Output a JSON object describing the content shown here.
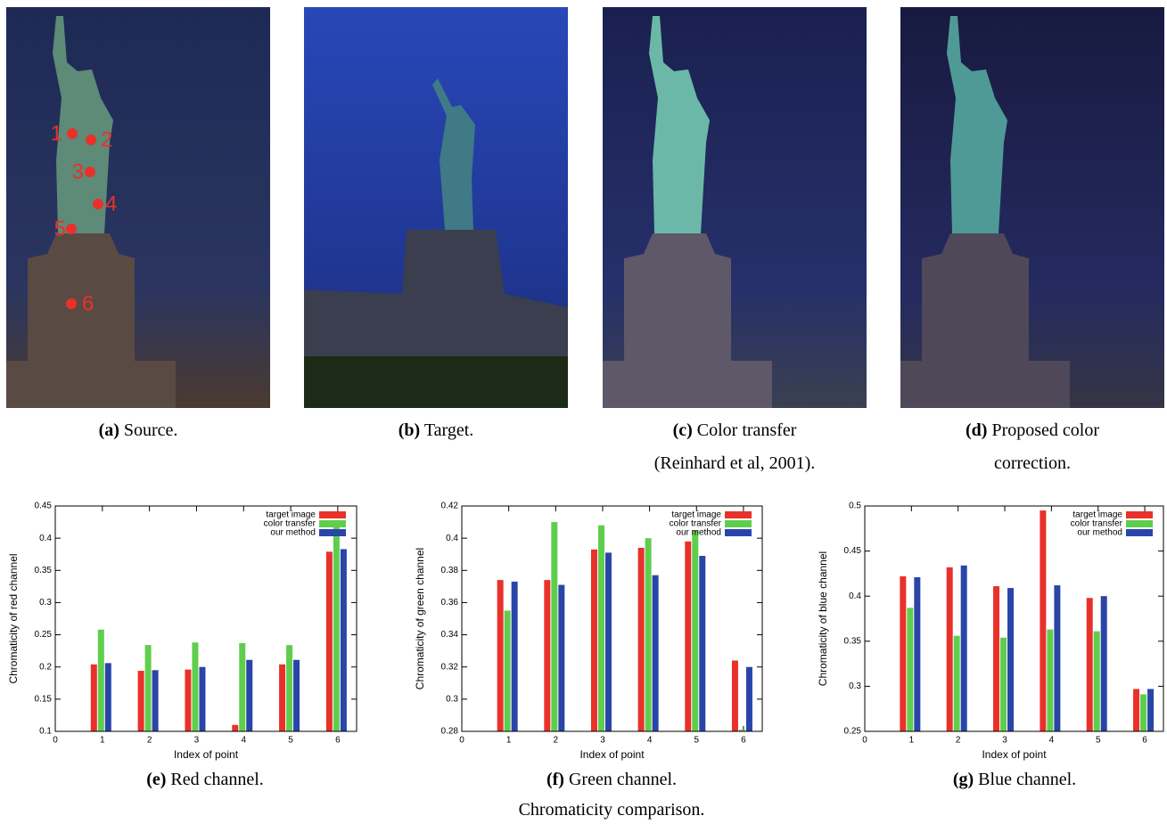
{
  "figures": [
    {
      "label": "(a)",
      "caption": "Source.",
      "points": [
        "1",
        "2",
        "3",
        "4",
        "5",
        "6"
      ]
    },
    {
      "label": "(b)",
      "caption": "Target."
    },
    {
      "label": "(c)",
      "caption": "Color transfer (Reinhard et al, 2001)."
    },
    {
      "label": "(d)",
      "caption": "Proposed color correction."
    }
  ],
  "figure_caption": "Chromaticity comparison.",
  "chart_data": [
    {
      "type": "bar",
      "label": "(e)",
      "caption": "Red channel.",
      "xlabel": "Index of point",
      "ylabel": "Chromaticity of red channel",
      "x": [
        1,
        2,
        3,
        4,
        5,
        6
      ],
      "xlim": [
        0,
        6.4
      ],
      "xticks": [
        0,
        1,
        2,
        3,
        4,
        5,
        6
      ],
      "ylim": [
        0.1,
        0.45
      ],
      "yticks": [
        0.1,
        0.15,
        0.2,
        0.25,
        0.3,
        0.35,
        0.4,
        0.45
      ],
      "legend": "top-right",
      "series": [
        {
          "name": "target image",
          "color": "#e8312a",
          "values": [
            0.204,
            0.194,
            0.196,
            0.11,
            0.204,
            0.379
          ]
        },
        {
          "name": "color transfer",
          "color": "#5fce4c",
          "values": [
            0.258,
            0.234,
            0.238,
            0.237,
            0.234,
            0.428
          ]
        },
        {
          "name": "our method",
          "color": "#2a45a8",
          "values": [
            0.206,
            0.195,
            0.2,
            0.211,
            0.211,
            0.383
          ]
        }
      ]
    },
    {
      "type": "bar",
      "label": "(f)",
      "caption": "Green channel.",
      "xlabel": "Index of point",
      "ylabel": "Chromaticity of green channel",
      "x": [
        1,
        2,
        3,
        4,
        5,
        6
      ],
      "xlim": [
        0,
        6.4
      ],
      "xticks": [
        0,
        1,
        2,
        3,
        4,
        5,
        6
      ],
      "ylim": [
        0.28,
        0.42
      ],
      "yticks": [
        0.28,
        0.3,
        0.32,
        0.34,
        0.36,
        0.38,
        0.4,
        0.42
      ],
      "legend": "top-right",
      "series": [
        {
          "name": "target image",
          "color": "#e8312a",
          "values": [
            0.374,
            0.374,
            0.393,
            0.394,
            0.398,
            0.324
          ]
        },
        {
          "name": "color transfer",
          "color": "#5fce4c",
          "values": [
            0.355,
            0.41,
            0.408,
            0.4,
            0.405,
            0.281
          ]
        },
        {
          "name": "our method",
          "color": "#2a45a8",
          "values": [
            0.373,
            0.371,
            0.391,
            0.377,
            0.389,
            0.32
          ]
        }
      ]
    },
    {
      "type": "bar",
      "label": "(g)",
      "caption": "Blue channel.",
      "xlabel": "Index of point",
      "ylabel": "Chromaticity of blue channel",
      "x": [
        1,
        2,
        3,
        4,
        5,
        6
      ],
      "xlim": [
        0,
        6.4
      ],
      "xticks": [
        0,
        1,
        2,
        3,
        4,
        5,
        6
      ],
      "ylim": [
        0.25,
        0.5
      ],
      "yticks": [
        0.25,
        0.3,
        0.35,
        0.4,
        0.45,
        0.5
      ],
      "legend": "top-right",
      "series": [
        {
          "name": "target image",
          "color": "#e8312a",
          "values": [
            0.422,
            0.432,
            0.411,
            0.495,
            0.398,
            0.297
          ]
        },
        {
          "name": "color transfer",
          "color": "#5fce4c",
          "values": [
            0.387,
            0.356,
            0.354,
            0.363,
            0.361,
            0.291
          ]
        },
        {
          "name": "our method",
          "color": "#2a45a8",
          "values": [
            0.421,
            0.434,
            0.409,
            0.412,
            0.4,
            0.297
          ]
        }
      ]
    }
  ]
}
